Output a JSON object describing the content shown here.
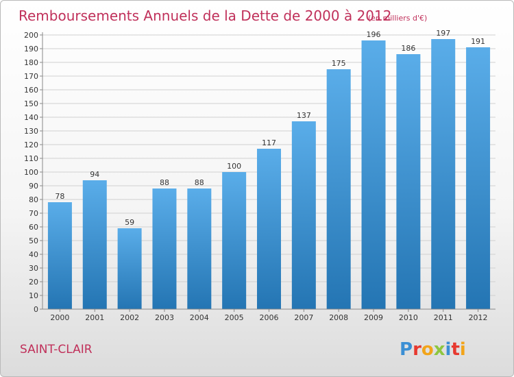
{
  "commune": "SAINT-CLAIR",
  "brand": {
    "text": "Proxiti",
    "letters": [
      {
        "ch": "P",
        "color": "#3b8fd4"
      },
      {
        "ch": "r",
        "color": "#e7392f"
      },
      {
        "ch": "o",
        "color": "#f2a41a"
      },
      {
        "ch": "x",
        "color": "#8dc63f"
      },
      {
        "ch": "i",
        "color": "#3b8fd4"
      },
      {
        "ch": "t",
        "color": "#e7392f"
      },
      {
        "ch": "i",
        "color": "#f2a41a"
      }
    ]
  },
  "colors": {
    "title": "#c0305a",
    "bar_top": "#5aade9",
    "bar_bottom": "#2475b3",
    "grid": "#d0d0d0",
    "axis": "#888888"
  },
  "chart_data": {
    "type": "bar",
    "title": "Remboursements Annuels de la Dette de 2000 à 2012",
    "subtitle": "(en milliers d'€)",
    "xlabel": "",
    "ylabel": "",
    "ylim": [
      0,
      200
    ],
    "ytick_step": 10,
    "grid": true,
    "categories": [
      "2000",
      "2001",
      "2002",
      "2003",
      "2004",
      "2005",
      "2006",
      "2007",
      "2008",
      "2009",
      "2010",
      "2011",
      "2012"
    ],
    "values": [
      78,
      94,
      59,
      88,
      88,
      100,
      117,
      137,
      175,
      196,
      186,
      197,
      191
    ]
  }
}
